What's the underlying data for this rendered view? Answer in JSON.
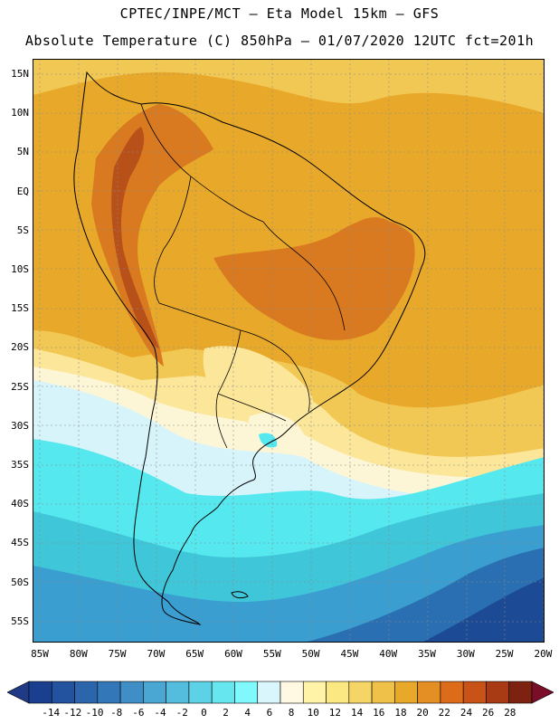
{
  "header": {
    "line1": "CPTEC/INPE/MCT –  Eta Model 15km – GFS",
    "line2": "Absolute Temperature (C) 850hPa – 01/07/2020 12UTC fct=201h"
  },
  "map": {
    "lat_labels": [
      "15N",
      "10N",
      "5N",
      "EQ",
      "5S",
      "10S",
      "15S",
      "20S",
      "25S",
      "30S",
      "35S",
      "40S",
      "45S",
      "50S",
      "55S"
    ],
    "lon_labels": [
      "85W",
      "80W",
      "75W",
      "70W",
      "65W",
      "60W",
      "55W",
      "50W",
      "45W",
      "40W",
      "35W",
      "30W",
      "25W",
      "20W"
    ],
    "fill_colors": {
      "warm": "#e8a92a",
      "hot": "#d97a20",
      "hottest": "#b8501a",
      "mild": "#f2c855",
      "pale": "#fbe69a",
      "cream": "#fdf6d6",
      "icy": "#d7f4fa",
      "cyan": "#55e8ee",
      "teal": "#3fc6d9",
      "blue1": "#3b9ed1",
      "blue2": "#2a6fb1",
      "blue3": "#1d4a95"
    }
  },
  "colorbar": {
    "labels": [
      "-14",
      "-12",
      "-10",
      "-8",
      "-6",
      "-4",
      "-2",
      "0",
      "2",
      "4",
      "6",
      "8",
      "10",
      "12",
      "14",
      "16",
      "18",
      "20",
      "22",
      "24",
      "26",
      "28"
    ],
    "colors": [
      "#1a3f8f",
      "#23529e",
      "#2b66ad",
      "#3477b9",
      "#3f8ec6",
      "#4aa6d2",
      "#54bcdc",
      "#5dd2e6",
      "#66e6ef",
      "#80f9fd",
      "#d8f6fb",
      "#fff8e2",
      "#fff3a8",
      "#fce882",
      "#f6d567",
      "#f0c149",
      "#e8a92a",
      "#e48f23",
      "#dc6c1a",
      "#c95216",
      "#a83a14",
      "#7d2211"
    ],
    "under_color": "#213a85",
    "over_color": "#7a0d27"
  }
}
